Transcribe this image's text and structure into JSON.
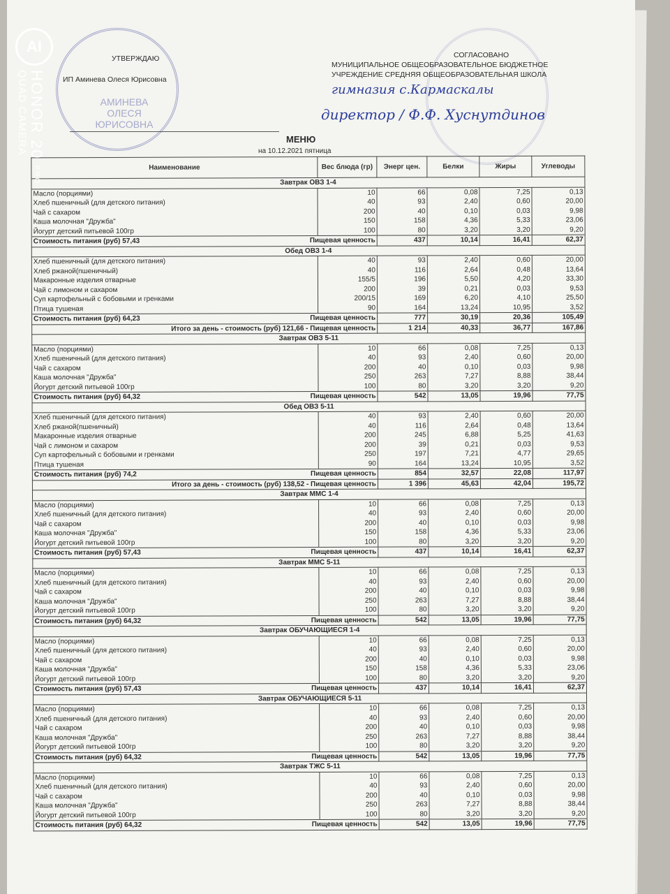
{
  "watermark": {
    "logo": "AI",
    "brand": "HONOR 20",
    "pro": "PRO",
    "camera": "QUAD CAMERA"
  },
  "approve": {
    "title": "УТВЕРЖДАЮ",
    "name": "ИП Аминева Олеся Юрисовна",
    "stamp": "АМИНЕВА ОЛЕСЯ ЮРИСОВНА"
  },
  "agree": {
    "title": "СОГЛАСОВАНО",
    "line1": "МУНИЦИПАЛЬНОЕ ОБЩЕОБРАЗОВАТЕЛЬНОЕ БЮДЖЕТНОЕ",
    "line2": "УЧРЕЖДЕНИЕ СРЕДНЯЯ ОБЩЕОБРАЗОВАТЕЛЬНАЯ ШКОЛА",
    "handwritten_school": "гимназия с.Кармаскалы",
    "handwritten_sign": "директор  /  Ф.Ф. Хуснутдинов"
  },
  "menu": {
    "title": "МЕНЮ",
    "date": "на  10.12.2021  пятница"
  },
  "columns": [
    "Наименование",
    "Вес блюда (гр)",
    "Энерг цен.",
    "Белки",
    "Жиры",
    "Углеводы"
  ],
  "nutrition_label": "Пищевая ценность",
  "sections": [
    {
      "title": "Завтрак  ОВЗ 1-4",
      "rows": [
        [
          "Масло (порциями)",
          "10",
          "66",
          "0,08",
          "7,25",
          "0,13"
        ],
        [
          "Хлеб пшеничный (для детского питания)",
          "40",
          "93",
          "2,40",
          "0,60",
          "20,00"
        ],
        [
          "Чай с сахаром",
          "200",
          "40",
          "0,10",
          "0,03",
          "9,98"
        ],
        [
          "Каша молочная \"Дружба\"",
          "150",
          "158",
          "4,36",
          "5,33",
          "23,06"
        ],
        [
          "Йогурт детский питьевой 100гр",
          "100",
          "80",
          "3,20",
          "3,20",
          "9,20"
        ]
      ],
      "cost": "Стоимость питания (руб)  57,43",
      "totals": [
        "437",
        "10,14",
        "16,41",
        "62,37"
      ]
    },
    {
      "title": "Обед  ОВЗ 1-4",
      "rows": [
        [
          "Хлеб пшеничный (для детского питания)",
          "40",
          "93",
          "2,40",
          "0,60",
          "20,00"
        ],
        [
          "Хлеб ржаной(пшеничный)",
          "40",
          "116",
          "2,64",
          "0,48",
          "13,64"
        ],
        [
          "Макаронные изделия отварные",
          "155/5",
          "196",
          "5,50",
          "4,20",
          "33,30"
        ],
        [
          "Чай с лимоном и сахаром",
          "200",
          "39",
          "0,21",
          "0,03",
          "9,53"
        ],
        [
          "Суп картофельный с бобовыми и гренками",
          "200/15",
          "169",
          "6,20",
          "4,10",
          "25,50"
        ],
        [
          "Птица тушеная",
          "90",
          "164",
          "13,24",
          "10,95",
          "3,52"
        ]
      ],
      "cost": "Стоимость питания (руб)  64,23",
      "totals": [
        "777",
        "30,19",
        "20,36",
        "105,49"
      ],
      "day_total": {
        "label": "Итого за день - стоимость (руб)  121,66  - Пищевая ценность",
        "values": [
          "1 214",
          "40,33",
          "36,77",
          "167,86"
        ]
      }
    },
    {
      "title": "Завтрак  ОВЗ 5-11",
      "rows": [
        [
          "Масло (порциями)",
          "10",
          "66",
          "0,08",
          "7,25",
          "0,13"
        ],
        [
          "Хлеб пшеничный (для детского питания)",
          "40",
          "93",
          "2,40",
          "0,60",
          "20,00"
        ],
        [
          "Чай с сахаром",
          "200",
          "40",
          "0,10",
          "0,03",
          "9,98"
        ],
        [
          "Каша молочная \"Дружба\"",
          "250",
          "263",
          "7,27",
          "8,88",
          "38,44"
        ],
        [
          "Йогурт детский питьевой 100гр",
          "100",
          "80",
          "3,20",
          "3,20",
          "9,20"
        ]
      ],
      "cost": "Стоимость питания (руб)  64,32",
      "totals": [
        "542",
        "13,05",
        "19,96",
        "77,75"
      ]
    },
    {
      "title": "Обед  ОВЗ 5-11",
      "rows": [
        [
          "Хлеб пшеничный (для детского питания)",
          "40",
          "93",
          "2,40",
          "0,60",
          "20,00"
        ],
        [
          "Хлеб ржаной(пшеничный)",
          "40",
          "116",
          "2,64",
          "0,48",
          "13,64"
        ],
        [
          "Макаронные изделия отварные",
          "200",
          "245",
          "6,88",
          "5,25",
          "41,63"
        ],
        [
          "Чай с лимоном и сахаром",
          "200",
          "39",
          "0,21",
          "0,03",
          "9,53"
        ],
        [
          "Суп картофельный с бобовыми и гренками",
          "250",
          "197",
          "7,21",
          "4,77",
          "29,65"
        ],
        [
          "Птица тушеная",
          "90",
          "164",
          "13,24",
          "10,95",
          "3,52"
        ]
      ],
      "cost": "Стоимость питания (руб)  74,2",
      "totals": [
        "854",
        "32,57",
        "22,08",
        "117,97"
      ],
      "day_total": {
        "label": "Итого за день - стоимость (руб)  138,52  - Пищевая ценность",
        "values": [
          "1 396",
          "45,63",
          "42,04",
          "195,72"
        ]
      }
    },
    {
      "title": "Завтрак  ММС 1-4",
      "rows": [
        [
          "Масло (порциями)",
          "10",
          "66",
          "0,08",
          "7,25",
          "0,13"
        ],
        [
          "Хлеб пшеничный (для детского питания)",
          "40",
          "93",
          "2,40",
          "0,60",
          "20,00"
        ],
        [
          "Чай с сахаром",
          "200",
          "40",
          "0,10",
          "0,03",
          "9,98"
        ],
        [
          "Каша молочная \"Дружба\"",
          "150",
          "158",
          "4,36",
          "5,33",
          "23,06"
        ],
        [
          "Йогурт детский питьевой 100гр",
          "100",
          "80",
          "3,20",
          "3,20",
          "9,20"
        ]
      ],
      "cost": "Стоимость питания (руб)  57,43",
      "totals": [
        "437",
        "10,14",
        "16,41",
        "62,37"
      ]
    },
    {
      "title": "Завтрак  ММС 5-11",
      "rows": [
        [
          "Масло (порциями)",
          "10",
          "66",
          "0,08",
          "7,25",
          "0,13"
        ],
        [
          "Хлеб пшеничный (для детского питания)",
          "40",
          "93",
          "2,40",
          "0,60",
          "20,00"
        ],
        [
          "Чай с сахаром",
          "200",
          "40",
          "0,10",
          "0,03",
          "9,98"
        ],
        [
          "Каша молочная \"Дружба\"",
          "250",
          "263",
          "7,27",
          "8,88",
          "38,44"
        ],
        [
          "Йогурт детский питьевой 100гр",
          "100",
          "80",
          "3,20",
          "3,20",
          "9,20"
        ]
      ],
      "cost": "Стоимость питания (руб)  64,32",
      "totals": [
        "542",
        "13,05",
        "19,96",
        "77,75"
      ]
    },
    {
      "title": "Завтрак  ОБУЧАЮЩИЕСЯ  1-4",
      "rows": [
        [
          "Масло (порциями)",
          "10",
          "66",
          "0,08",
          "7,25",
          "0,13"
        ],
        [
          "Хлеб пшеничный (для детского питания)",
          "40",
          "93",
          "2,40",
          "0,60",
          "20,00"
        ],
        [
          "Чай с сахаром",
          "200",
          "40",
          "0,10",
          "0,03",
          "9,98"
        ],
        [
          "Каша молочная \"Дружба\"",
          "150",
          "158",
          "4,36",
          "5,33",
          "23,06"
        ],
        [
          "Йогурт детский питьевой 100гр",
          "100",
          "80",
          "3,20",
          "3,20",
          "9,20"
        ]
      ],
      "cost": "Стоимость питания (руб)  57,43",
      "totals": [
        "437",
        "10,14",
        "16,41",
        "62,37"
      ]
    },
    {
      "title": "Завтрак  ОБУЧАЮЩИЕСЯ  5-11",
      "rows": [
        [
          "Масло (порциями)",
          "10",
          "66",
          "0,08",
          "7,25",
          "0,13"
        ],
        [
          "Хлеб пшеничный (для детского питания)",
          "40",
          "93",
          "2,40",
          "0,60",
          "20,00"
        ],
        [
          "Чай с сахаром",
          "200",
          "40",
          "0,10",
          "0,03",
          "9,98"
        ],
        [
          "Каша молочная \"Дружба\"",
          "250",
          "263",
          "7,27",
          "8,88",
          "38,44"
        ],
        [
          "Йогурт детский питьевой 100гр",
          "100",
          "80",
          "3,20",
          "3,20",
          "9,20"
        ]
      ],
      "cost": "Стоимость питания (руб)  64,32",
      "totals": [
        "542",
        "13,05",
        "19,96",
        "77,75"
      ]
    },
    {
      "title": "Завтрак  ТЖС  5-11",
      "rows": [
        [
          "Масло (порциями)",
          "10",
          "66",
          "0,08",
          "7,25",
          "0,13"
        ],
        [
          "Хлеб пшеничный (для детского питания)",
          "40",
          "93",
          "2,40",
          "0,60",
          "20,00"
        ],
        [
          "Чай с сахаром",
          "200",
          "40",
          "0,10",
          "0,03",
          "9,98"
        ],
        [
          "Каша молочная \"Дружба\"",
          "250",
          "263",
          "7,27",
          "8,88",
          "38,44"
        ],
        [
          "Йогурт детский питьевой 100гр",
          "100",
          "80",
          "3,20",
          "3,20",
          "9,20"
        ]
      ],
      "cost": "Стоимость питания (руб)  64,32",
      "totals": [
        "542",
        "13,05",
        "19,96",
        "77,75"
      ]
    }
  ]
}
